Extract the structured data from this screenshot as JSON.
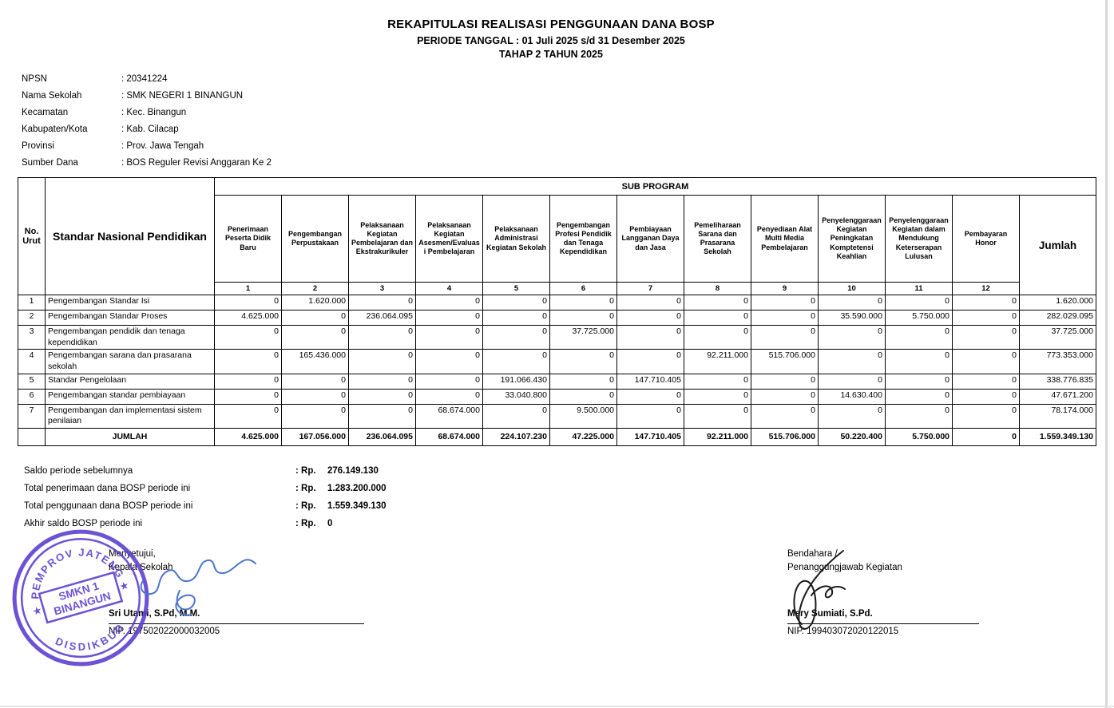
{
  "header": {
    "title": "REKAPITULASI REALISASI PENGGUNAAN DANA BOSP",
    "subtitle": "PERIODE TANGGAL : 01 Juli 2025 s/d 31 Desember 2025",
    "phase": "TAHAP 2 TAHUN 2025"
  },
  "school_info": [
    {
      "label": "NPSN",
      "value": "20341224"
    },
    {
      "label": "Nama Sekolah",
      "value": "SMK NEGERI 1 BINANGUN"
    },
    {
      "label": "Kecamatan",
      "value": "Kec. Binangun"
    },
    {
      "label": "Kabupaten/Kota",
      "value": "Kab. Cilacap"
    },
    {
      "label": "Provinsi",
      "value": "Prov. Jawa Tengah"
    },
    {
      "label": "Sumber Dana",
      "value": "BOS Reguler Revisi Anggaran Ke 2"
    }
  ],
  "table": {
    "col_no": "No. Urut",
    "col_snp": "Standar Nasional Pendidikan",
    "col_group": "SUB PROGRAM",
    "col_jumlah": "Jumlah",
    "sub_programs": [
      {
        "no": "1",
        "name": "Penerimaan Peserta Didik Baru"
      },
      {
        "no": "2",
        "name": "Pengembangan Perpustakaan"
      },
      {
        "no": "3",
        "name": "Pelaksanaan Kegiatan Pembelajaran dan Ekstrakurikuler"
      },
      {
        "no": "4",
        "name": "Pelaksanaan Kegiatan Asesmen/Evaluasi Pembelajaran"
      },
      {
        "no": "5",
        "name": "Pelaksanaan Administrasi Kegiatan Sekolah"
      },
      {
        "no": "6",
        "name": "Pengembangan Profesi Pendidik dan Tenaga Kependidikan"
      },
      {
        "no": "7",
        "name": "Pembiayaan Langganan Daya dan Jasa"
      },
      {
        "no": "8",
        "name": "Pemeliharaan Sarana dan Prasarana Sekolah"
      },
      {
        "no": "9",
        "name": "Penyediaan Alat Multi Media Pembelajaran"
      },
      {
        "no": "10",
        "name": "Penyelenggaraan Kegiatan Peningkatan Komptetensi Keahlian"
      },
      {
        "no": "11",
        "name": "Penyelenggaraan Kegiatan dalam Mendukung Keterserapan Lulusan"
      },
      {
        "no": "12",
        "name": "Pembayaran Honor"
      }
    ],
    "rows": [
      {
        "no": "1",
        "name": "Pengembangan Standar Isi",
        "values": [
          "0",
          "1.620.000",
          "0",
          "0",
          "0",
          "0",
          "0",
          "0",
          "0",
          "0",
          "0",
          "0"
        ],
        "jumlah": "1.620.000"
      },
      {
        "no": "2",
        "name": "Pengembangan Standar Proses",
        "values": [
          "4.625.000",
          "0",
          "236.064.095",
          "0",
          "0",
          "0",
          "0",
          "0",
          "0",
          "35.590.000",
          "5.750.000",
          "0"
        ],
        "jumlah": "282.029.095"
      },
      {
        "no": "3",
        "name": "Pengembangan pendidik dan tenaga kependidikan",
        "values": [
          "0",
          "0",
          "0",
          "0",
          "0",
          "37.725.000",
          "0",
          "0",
          "0",
          "0",
          "0",
          "0"
        ],
        "jumlah": "37.725.000"
      },
      {
        "no": "4",
        "name": "Pengembangan sarana dan prasarana sekolah",
        "values": [
          "0",
          "165.436.000",
          "0",
          "0",
          "0",
          "0",
          "0",
          "92.211.000",
          "515.706.000",
          "0",
          "0",
          "0"
        ],
        "jumlah": "773.353.000"
      },
      {
        "no": "5",
        "name": "Standar Pengelolaan",
        "values": [
          "0",
          "0",
          "0",
          "0",
          "191.066.430",
          "0",
          "147.710.405",
          "0",
          "0",
          "0",
          "0",
          "0"
        ],
        "jumlah": "338.776.835"
      },
      {
        "no": "6",
        "name": "Pengembangan standar pembiayaan",
        "values": [
          "0",
          "0",
          "0",
          "0",
          "33.040.800",
          "0",
          "0",
          "0",
          "0",
          "14.630.400",
          "0",
          "0"
        ],
        "jumlah": "47.671.200"
      },
      {
        "no": "7",
        "name": "Pengembangan dan implementasi sistem penilaian",
        "values": [
          "0",
          "0",
          "0",
          "68.674.000",
          "0",
          "9.500.000",
          "0",
          "0",
          "0",
          "0",
          "0",
          "0"
        ],
        "jumlah": "78.174.000"
      }
    ],
    "total_row": {
      "label": "JUMLAH",
      "values": [
        "4.625.000",
        "167.056.000",
        "236.064.095",
        "68.674.000",
        "224.107.230",
        "47.225.000",
        "147.710.405",
        "92.211.000",
        "515.706.000",
        "50.220.400",
        "5.750.000",
        "0"
      ],
      "jumlah": "1.559.349.130"
    }
  },
  "summary": [
    {
      "label": "Saldo periode sebelumnya",
      "currency": ": Rp.",
      "value": "276.149.130"
    },
    {
      "label": "Total penerimaan dana BOSP periode ini",
      "currency": ": Rp.",
      "value": "1.283.200.000"
    },
    {
      "label": "Total penggunaan dana BOSP periode ini",
      "currency": ": Rp.",
      "value": "1.559.349.130"
    },
    {
      "label": "Akhir saldo BOSP periode ini",
      "currency": ": Rp.",
      "value": "0"
    }
  ],
  "signatures": {
    "left": {
      "role_line1": "Menyetujui,",
      "role_line2": "Kepala Sekolah",
      "name": "Sri Utami, S.Pd, M.M.",
      "nip": "NIP. 197502022000032005"
    },
    "right": {
      "role_line1": "Bendahara /",
      "role_line2": "Penanggungjawab Kegiatan",
      "name": "Mery Sumiati, S.Pd.",
      "nip": "NIP. 199403072020122015"
    }
  },
  "stamp": {
    "top_text": "PEMPROV JATENG",
    "bottom_text": "DISDIKBUD",
    "center_line1": "SMKN 1",
    "center_line2": "BINANGUN"
  },
  "colors": {
    "stamp_purple": "#5a3bd0",
    "signature_blue": "#4a74cf",
    "signature_black": "#1a1a1a",
    "text": "#000000"
  }
}
